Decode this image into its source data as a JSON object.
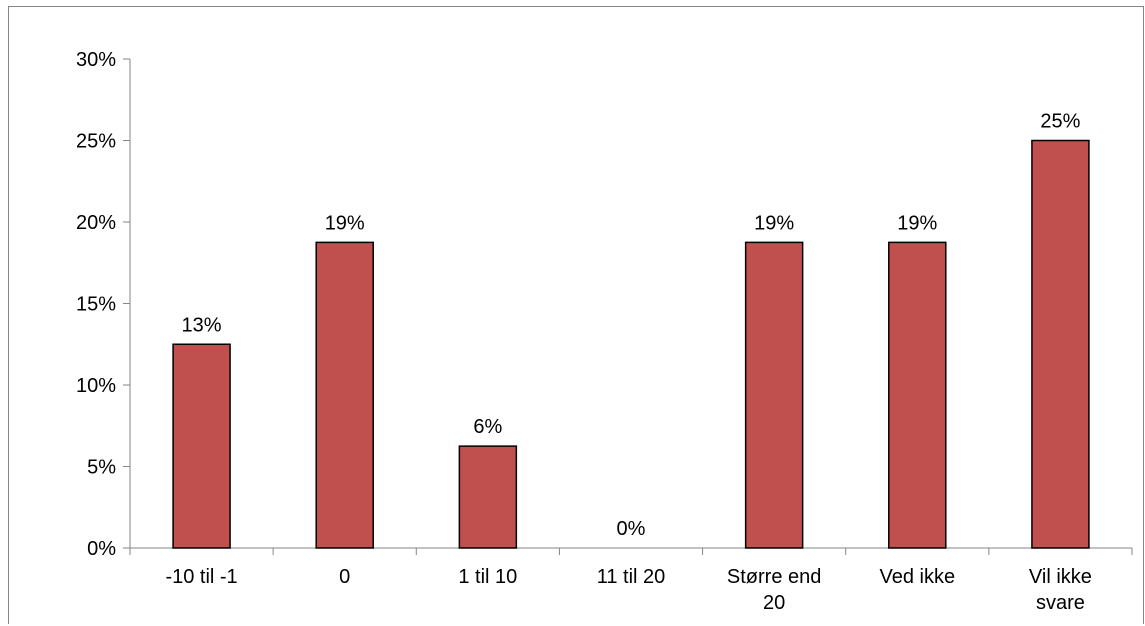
{
  "chart_data": {
    "type": "bar",
    "categories": [
      "-10 til -1",
      "0",
      "1 til 10",
      "11 til 20",
      "Større end 20",
      "Ved ikke",
      "Vil ikke svare"
    ],
    "category_lines": [
      [
        "-10 til -1"
      ],
      [
        "0"
      ],
      [
        "1 til 10"
      ],
      [
        "11 til 20"
      ],
      [
        "Større end",
        "20"
      ],
      [
        "Ved ikke"
      ],
      [
        "Vil ikke",
        "svare"
      ]
    ],
    "values": [
      12.5,
      18.75,
      6.25,
      0,
      18.75,
      18.75,
      25
    ],
    "data_labels": [
      "13%",
      "19%",
      "6%",
      "0%",
      "19%",
      "19%",
      "25%"
    ],
    "y_ticks": [
      0,
      5,
      10,
      15,
      20,
      25,
      30
    ],
    "y_tick_labels": [
      "0%",
      "5%",
      "10%",
      "15%",
      "20%",
      "25%",
      "30%"
    ],
    "ylim": [
      0,
      30
    ],
    "grid": false,
    "legend": "none",
    "bar_color": "#c0504d",
    "bar_border": "#000000",
    "title": "",
    "xlabel": "",
    "ylabel": ""
  }
}
